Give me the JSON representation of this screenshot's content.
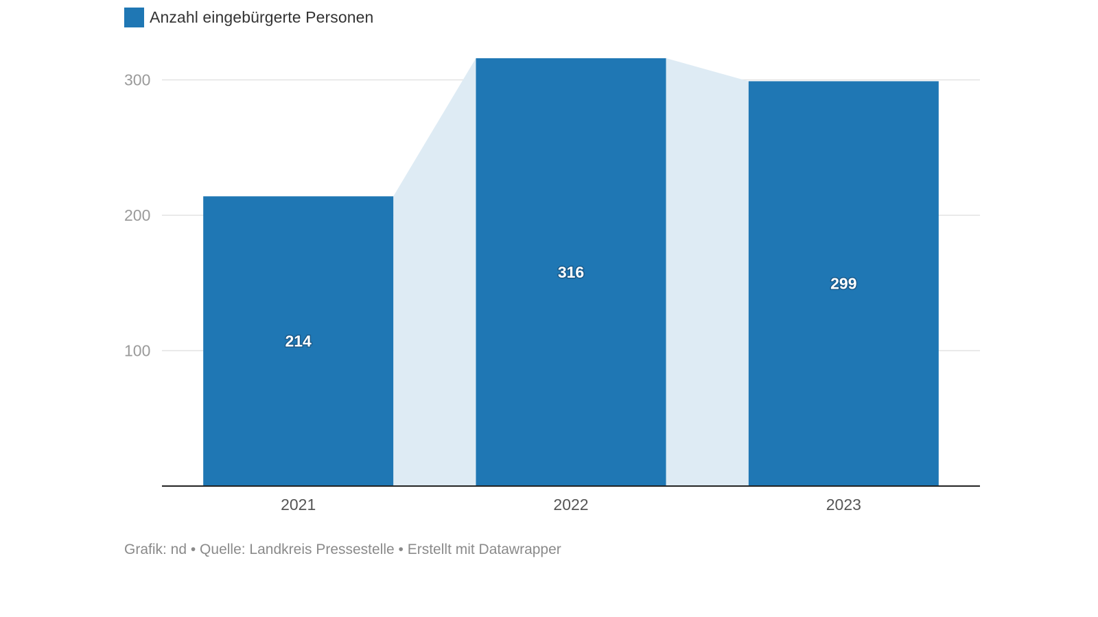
{
  "legend": {
    "label": "Anzahl eingebürgerte Personen",
    "color": "#1f77b4"
  },
  "footer": {
    "text": "Grafik: nd • Quelle: Landkreis Pressestelle • Erstellt mit Datawrapper"
  },
  "chart_data": {
    "type": "bar",
    "categories": [
      "2021",
      "2022",
      "2023"
    ],
    "series": [
      {
        "name": "Anzahl eingebürgerte Personen",
        "values": [
          214,
          316,
          299
        ]
      }
    ],
    "value_labels": [
      "214",
      "316",
      "299"
    ],
    "yticks": [
      100,
      200,
      300
    ],
    "ytick_labels": [
      "100",
      "200",
      "300"
    ],
    "ylim": [
      0,
      320
    ],
    "grid": true,
    "bar_color": "#1f77b4",
    "connector_color": "#deebf4",
    "legend_position": "top-left"
  }
}
